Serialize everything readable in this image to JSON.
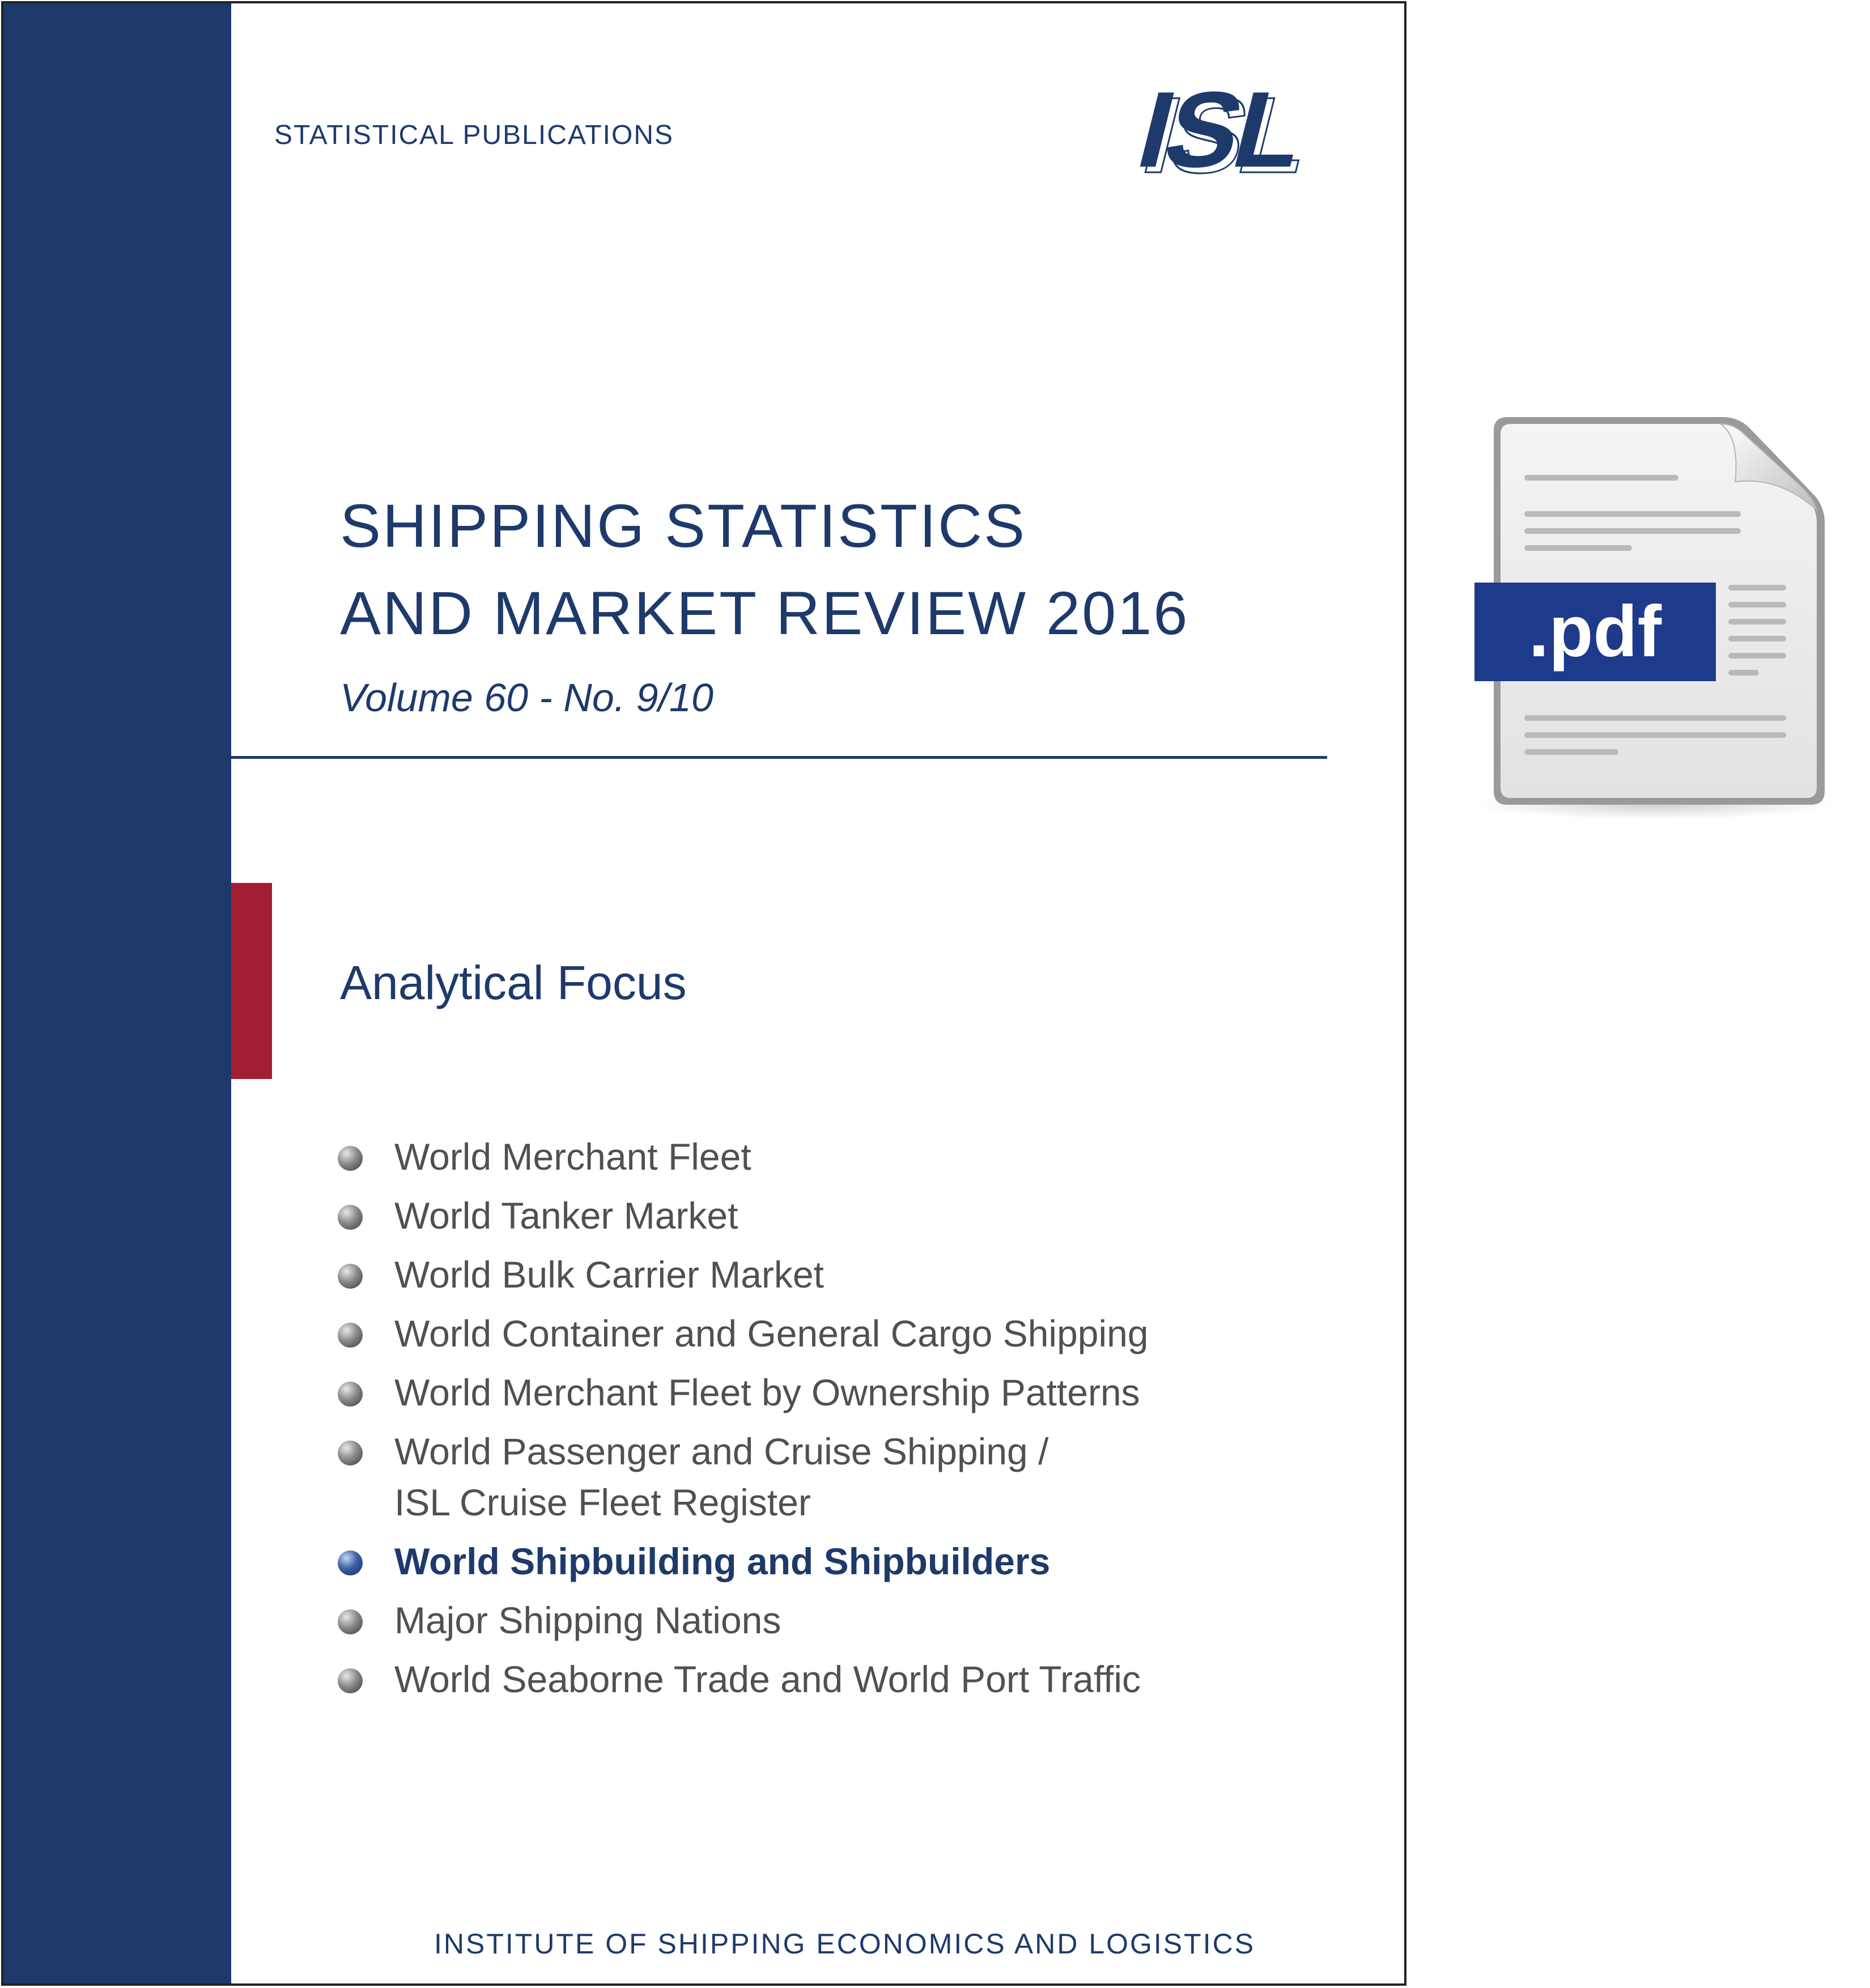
{
  "cover": {
    "series": "STATISTICAL PUBLICATIONS",
    "logo_text": "ISL",
    "title_line1": "SHIPPING STATISTICS",
    "title_line2": "AND MARKET REVIEW 2016",
    "volume": "Volume 60 - No. 9/10",
    "focus_heading": "Analytical Focus",
    "topics": [
      {
        "lines": [
          "World Merchant Fleet"
        ],
        "active": false
      },
      {
        "lines": [
          "World Tanker Market"
        ],
        "active": false
      },
      {
        "lines": [
          "World Bulk Carrier Market"
        ],
        "active": false
      },
      {
        "lines": [
          "World Container and General Cargo Shipping"
        ],
        "active": false
      },
      {
        "lines": [
          "World Merchant Fleet by Ownership Patterns"
        ],
        "active": false
      },
      {
        "lines": [
          "World Passenger and Cruise Shipping /",
          "ISL Cruise Fleet Register"
        ],
        "active": false
      },
      {
        "lines": [
          "World Shipbuilding and Shipbuilders"
        ],
        "active": true
      },
      {
        "lines": [
          "Major Shipping Nations"
        ],
        "active": false
      },
      {
        "lines": [
          "World Seaborne Trade and World Port Traffic"
        ],
        "active": false
      }
    ],
    "footer": "INSTITUTE OF SHIPPING ECONOMICS AND LOGISTICS"
  },
  "pdf_icon": {
    "label": ".pdf",
    "icon": "pdf-file-icon"
  },
  "colors": {
    "navy": "#1e3a6b",
    "accent_red": "#a21e33",
    "pdf_blue": "#1e3a8a"
  }
}
